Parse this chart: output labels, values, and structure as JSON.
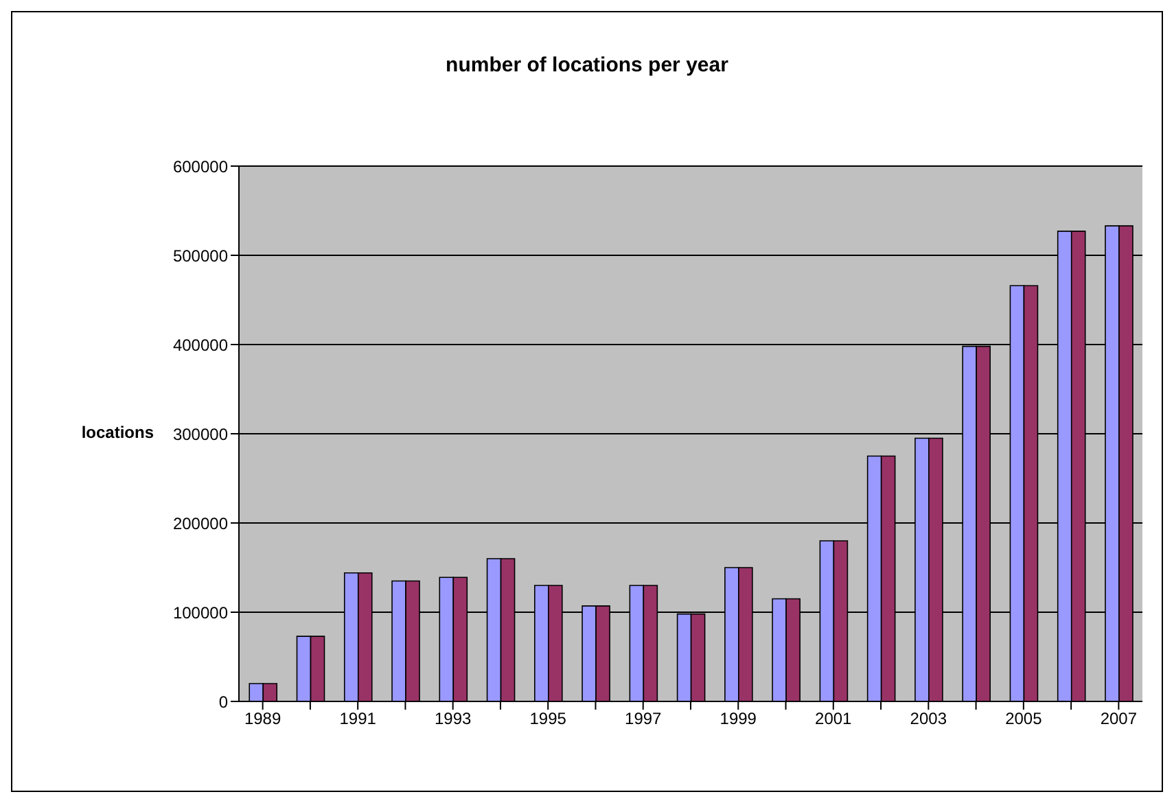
{
  "chart_data": {
    "type": "bar",
    "title": "number of locations per year",
    "ylabel": "locations",
    "categories": [
      "1989",
      null,
      "1991",
      null,
      "1993",
      null,
      "1995",
      null,
      "1997",
      null,
      "1999",
      null,
      "2001",
      null,
      "2003",
      null,
      "2005",
      null,
      "2007"
    ],
    "series": [
      {
        "color": "#9999ff",
        "values": [
          20000,
          73000,
          144000,
          135000,
          139000,
          160000,
          130000,
          107000,
          130000,
          98000,
          150000,
          115000,
          180000,
          275000,
          295000,
          398000,
          466000,
          527000,
          533000
        ]
      },
      {
        "color": "#993366",
        "values": [
          20000,
          73000,
          144000,
          135000,
          139000,
          160000,
          130000,
          107000,
          130000,
          98000,
          150000,
          115000,
          180000,
          275000,
          295000,
          398000,
          466000,
          527000,
          533000
        ]
      }
    ],
    "ylim": [
      0,
      600000
    ],
    "yticks": [
      0,
      100000,
      200000,
      300000,
      400000,
      500000,
      600000
    ],
    "grid": "y"
  }
}
